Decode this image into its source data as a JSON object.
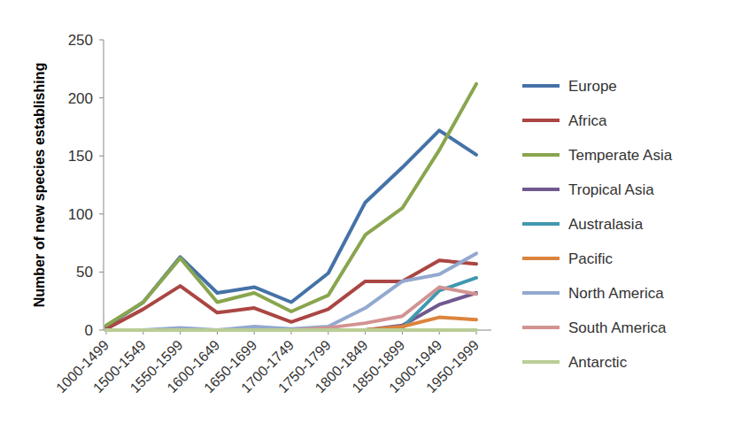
{
  "chart_data": {
    "type": "line",
    "y_label": "Number of new species establishing",
    "categories": [
      "1000-1499",
      "1500-1549",
      "1550-1599",
      "1600-1649",
      "1650-1699",
      "1700-1749",
      "1750-1799",
      "1800-1849",
      "1850-1899",
      "1900-1949",
      "1950-1999"
    ],
    "series": [
      {
        "name": "Europe",
        "color": "#4572a7",
        "values": [
          3,
          24,
          63,
          32,
          37,
          24,
          49,
          110,
          140,
          172,
          151
        ]
      },
      {
        "name": "Africa",
        "color": "#aa4643",
        "values": [
          1,
          18,
          38,
          15,
          19,
          7,
          18,
          42,
          42,
          60,
          57
        ]
      },
      {
        "name": "Temperate Asia",
        "color": "#89a54e",
        "values": [
          4,
          24,
          62,
          24,
          32,
          16,
          30,
          82,
          105,
          155,
          212
        ]
      },
      {
        "name": "Tropical Asia",
        "color": "#71588f",
        "values": [
          0,
          0,
          0,
          0,
          0,
          0,
          0,
          0,
          4,
          22,
          32
        ]
      },
      {
        "name": "Australasia",
        "color": "#4198af",
        "values": [
          0,
          0,
          0,
          0,
          0,
          0,
          0,
          0,
          2,
          34,
          45
        ]
      },
      {
        "name": "Pacific",
        "color": "#db843d",
        "values": [
          0,
          0,
          0,
          0,
          0,
          0,
          0,
          0,
          3,
          11,
          9
        ]
      },
      {
        "name": "North America",
        "color": "#93a9cf",
        "values": [
          0,
          0,
          2,
          0,
          3,
          1,
          3,
          19,
          42,
          48,
          66
        ]
      },
      {
        "name": "South America",
        "color": "#d19392",
        "values": [
          0,
          0,
          0,
          0,
          0,
          0,
          2,
          6,
          12,
          37,
          31
        ]
      },
      {
        "name": "Antarctic",
        "color": "#b9cd96",
        "values": [
          0,
          0,
          0,
          0,
          0,
          0,
          0,
          0,
          0,
          0,
          0
        ]
      }
    ],
    "ylim": [
      0,
      250
    ],
    "yticks": [
      0,
      50,
      100,
      150,
      200,
      250
    ],
    "grid": false,
    "legend": "right"
  }
}
